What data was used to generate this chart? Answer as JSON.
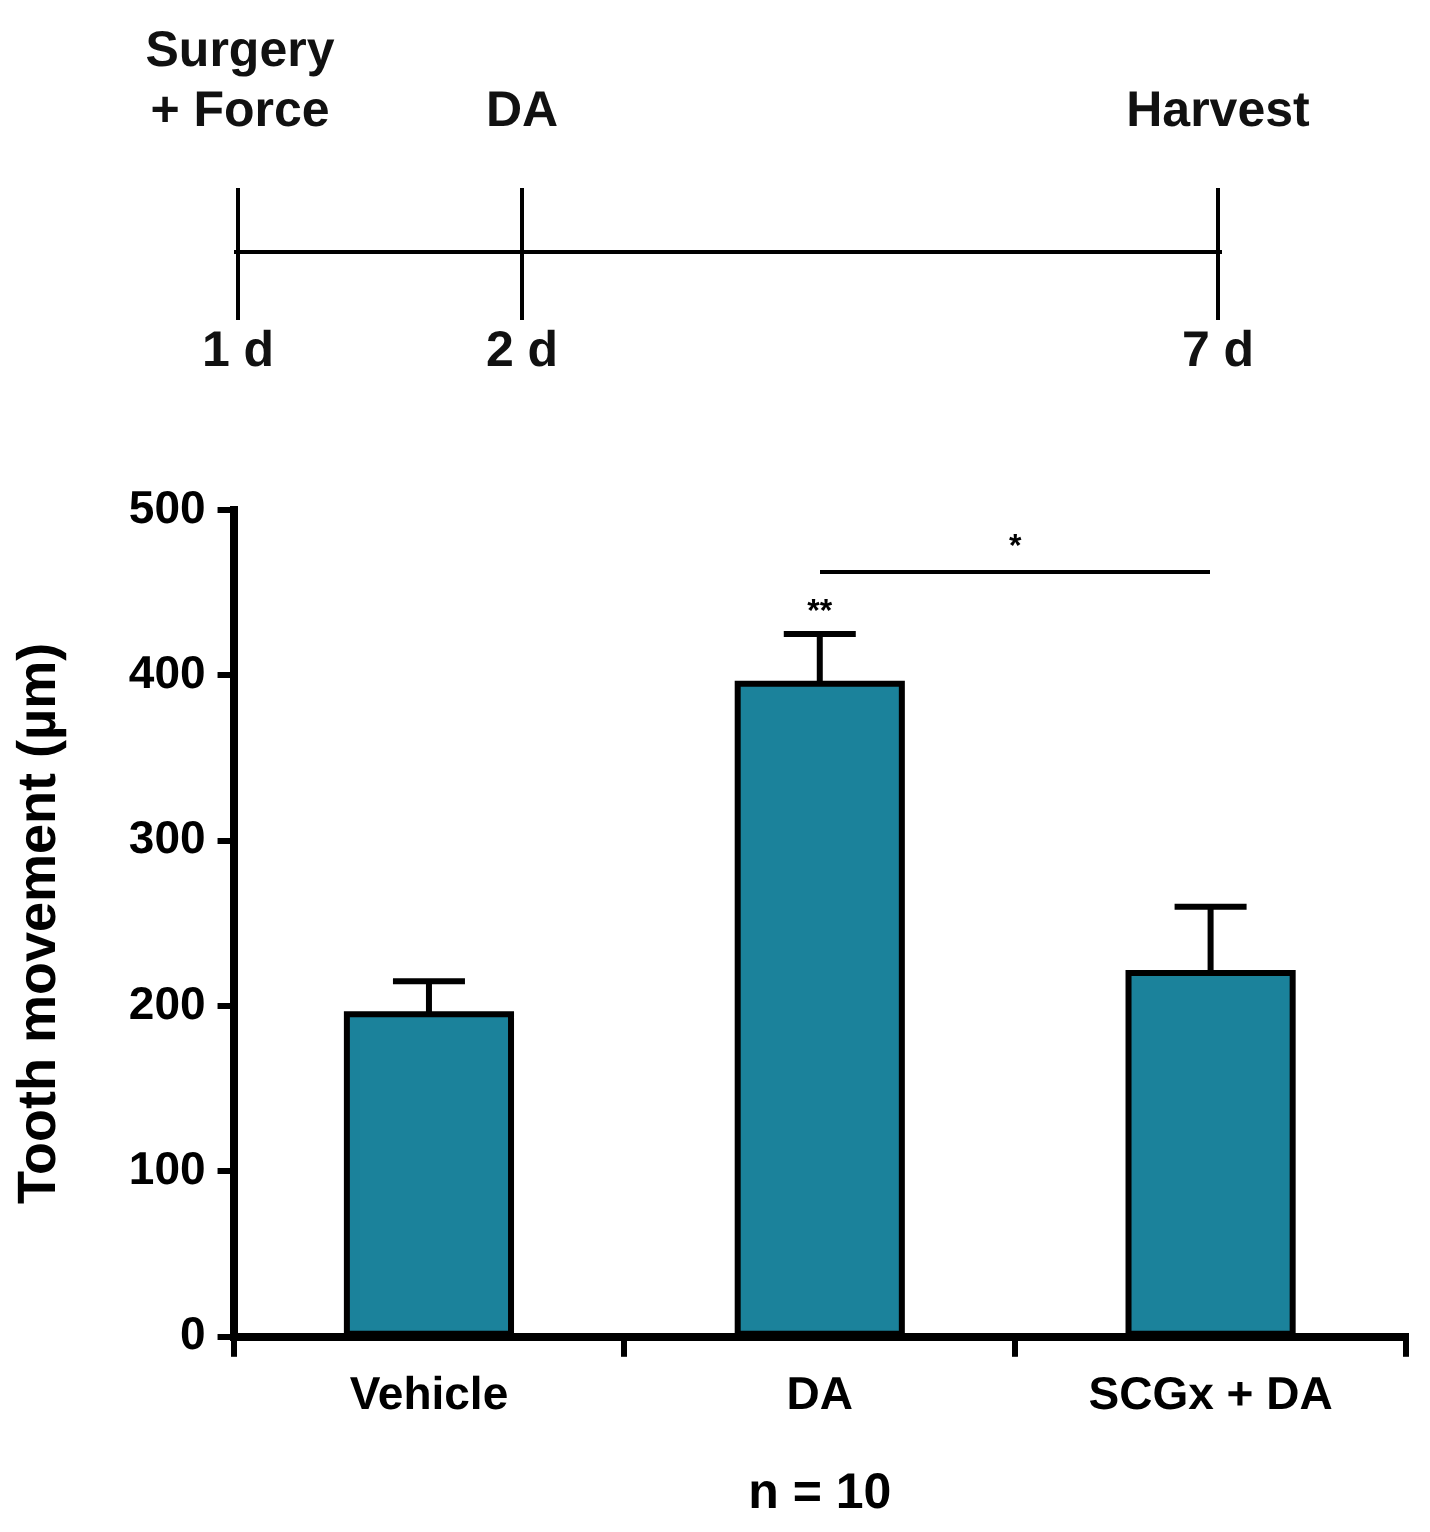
{
  "chart_data": {
    "type": "bar",
    "ylabel": "Tooth movement (µm)",
    "xlabel": "n = 10",
    "categories": [
      "Vehicle",
      "DA",
      "SCGx + DA"
    ],
    "values": [
      195,
      395,
      220
    ],
    "errors": [
      20,
      30,
      40
    ],
    "color": "#1b829b",
    "ylim": [
      0,
      500
    ],
    "yticks": [
      0,
      100,
      200,
      300,
      400,
      500
    ],
    "grid": false,
    "legend": false,
    "annotations": [
      "Surgery + Force",
      "DA",
      "Harvest",
      "1 d",
      "2 d",
      "7 d",
      "*",
      {
        "text": "**",
        "x": "DA",
        "y": 425
      }
    ]
  }
}
